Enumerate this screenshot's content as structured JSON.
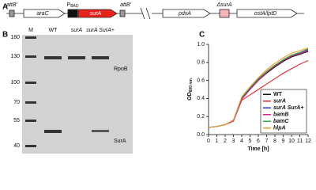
{
  "panels": {
    "a": "A",
    "b": "B",
    "c": "C"
  },
  "panel_a": {
    "attb_left": "attB'",
    "arac": "araC",
    "promoter": "P",
    "promoter_sub": "BAD",
    "sura": "surA",
    "attb_right": "attB'",
    "pdxa": "pdxA",
    "delta_sura": "ΔsurA",
    "osta": "ostA/lptD"
  },
  "panel_b": {
    "lanes": [
      "M",
      "WT",
      "surA",
      "surA SurA+"
    ],
    "marker_labels": [
      "180",
      "130",
      "100",
      "70",
      "55",
      "40"
    ],
    "band_labels": [
      "RpoB",
      "SurA"
    ]
  },
  "chart_data": {
    "type": "line",
    "ylabel": "OD",
    "ylabel_sub": "600 nm",
    "xlabel": "Time [h]",
    "x": [
      0,
      1,
      2,
      3,
      4,
      5,
      6,
      7,
      8,
      9,
      10,
      11,
      12
    ],
    "xlim": [
      0,
      12
    ],
    "xticks": [
      0,
      1,
      2,
      3,
      4,
      5,
      6,
      7,
      8,
      9,
      10,
      11,
      12
    ],
    "ylim": [
      0,
      1.0
    ],
    "yticks": [
      {
        "value": 0,
        "label": "0.0"
      },
      0.2,
      0.4,
      0.6,
      0.8,
      {
        "value": 1.0,
        "label": "1.0"
      }
    ],
    "legend": "lower right",
    "series": [
      {
        "name": "WT",
        "color": "#111111",
        "values": [
          0.08,
          0.09,
          0.11,
          0.16,
          0.4,
          0.5,
          0.6,
          0.68,
          0.75,
          0.81,
          0.86,
          0.89,
          0.92
        ]
      },
      {
        "name": "surA",
        "color": "#e8262a",
        "values": [
          0.08,
          0.09,
          0.11,
          0.15,
          0.38,
          0.44,
          0.5,
          0.56,
          0.62,
          0.68,
          0.73,
          0.78,
          0.82
        ]
      },
      {
        "name": "surA SurA+",
        "color": "#2233cc",
        "values": [
          0.08,
          0.09,
          0.11,
          0.16,
          0.4,
          0.51,
          0.61,
          0.69,
          0.76,
          0.82,
          0.87,
          0.91,
          0.94
        ]
      },
      {
        "name": "bamB",
        "color": "#e01e8c",
        "values": [
          0.08,
          0.09,
          0.11,
          0.15,
          0.39,
          0.5,
          0.6,
          0.69,
          0.76,
          0.82,
          0.87,
          0.9,
          0.93
        ]
      },
      {
        "name": "bamC",
        "color": "#2aa84a",
        "values": [
          0.08,
          0.09,
          0.11,
          0.16,
          0.41,
          0.52,
          0.62,
          0.7,
          0.77,
          0.83,
          0.88,
          0.91,
          0.95
        ]
      },
      {
        "name": "hlpA",
        "color": "#f0a020",
        "values": [
          0.08,
          0.09,
          0.11,
          0.16,
          0.42,
          0.53,
          0.63,
          0.72,
          0.79,
          0.85,
          0.9,
          0.93,
          0.96
        ]
      }
    ]
  }
}
